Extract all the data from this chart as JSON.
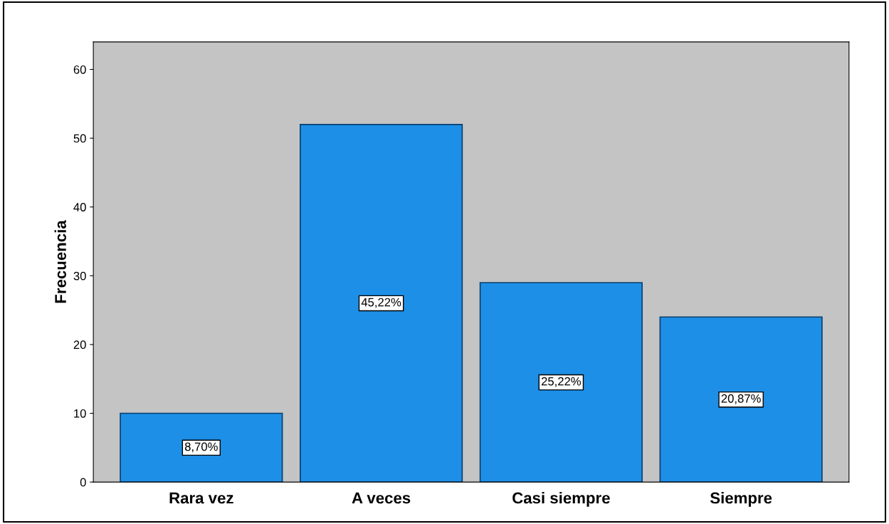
{
  "chart_data": {
    "type": "bar",
    "ylabel": "Frecuencia",
    "categories": [
      "Rara vez",
      "A veces",
      "Casi siempre",
      "Siempre"
    ],
    "values": [
      10,
      52,
      29,
      24
    ],
    "annotations": [
      "8,70%",
      "45,22%",
      "25,22%",
      "20,87%"
    ],
    "color": "#1e8fe6",
    "ylim": [
      0,
      64
    ],
    "yticks": [
      0,
      10,
      20,
      30,
      40,
      50,
      60
    ],
    "grid": false,
    "legend": false
  }
}
